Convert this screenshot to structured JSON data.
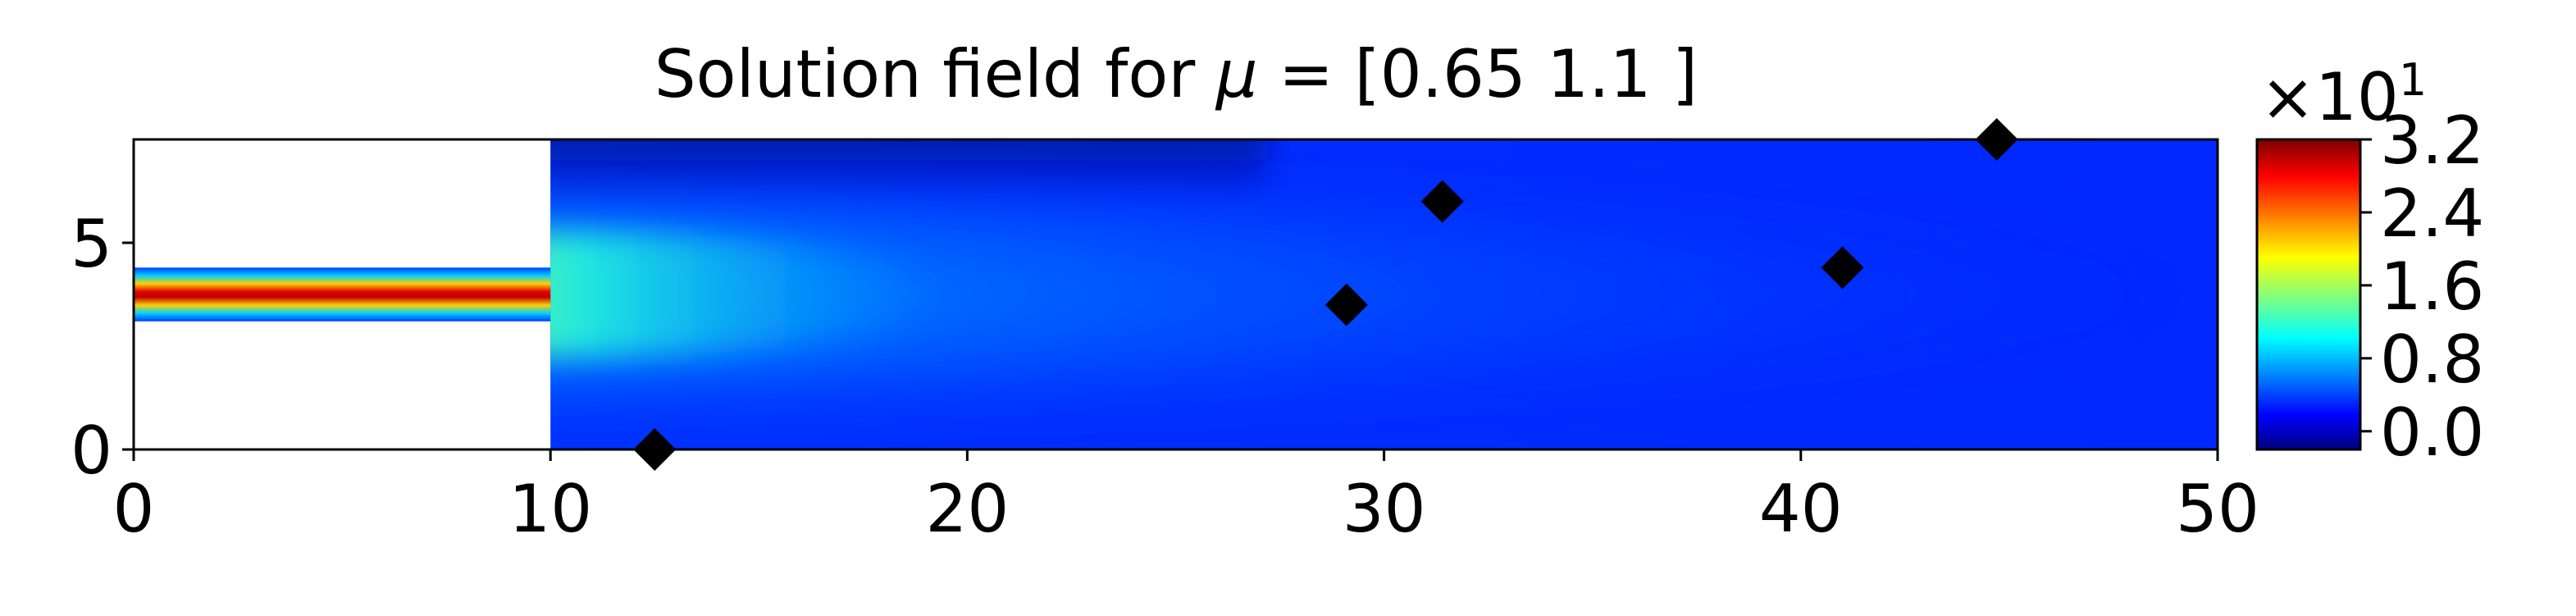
{
  "chart_data": {
    "type": "heatmap",
    "title_prefix": "Solution field for ",
    "title_symbol": "μ",
    "title_suffix": " = [0.65 1.1 ]",
    "xlim": [
      0,
      50
    ],
    "ylim": [
      0,
      7.5
    ],
    "x_ticks": [
      "0",
      "10",
      "20",
      "30",
      "40",
      "50"
    ],
    "y_ticks": [
      "0",
      "5"
    ],
    "domain": {
      "inlet_channel": {
        "x": [
          0,
          10
        ],
        "y": [
          3.1,
          4.4
        ]
      },
      "main_chamber": {
        "x": [
          10,
          50
        ],
        "y": [
          0,
          7.5
        ]
      }
    },
    "colorbar": {
      "colormap": "jet",
      "range": [
        -0.2,
        3.2
      ],
      "ticks": [
        "0.0",
        "0.8",
        "1.6",
        "2.4",
        "3.2"
      ],
      "tick_values": [
        0.0,
        0.8,
        1.6,
        2.4,
        3.2
      ],
      "multiplier_base": "×10",
      "multiplier_exp": "1"
    },
    "markers": {
      "shape": "diamond",
      "color": "#000000",
      "points": [
        {
          "x": 12.5,
          "y": 0.0
        },
        {
          "x": 29.1,
          "y": 3.5
        },
        {
          "x": 31.4,
          "y": 6.0
        },
        {
          "x": 41.0,
          "y": 4.4
        },
        {
          "x": 44.7,
          "y": 7.5
        }
      ]
    }
  }
}
